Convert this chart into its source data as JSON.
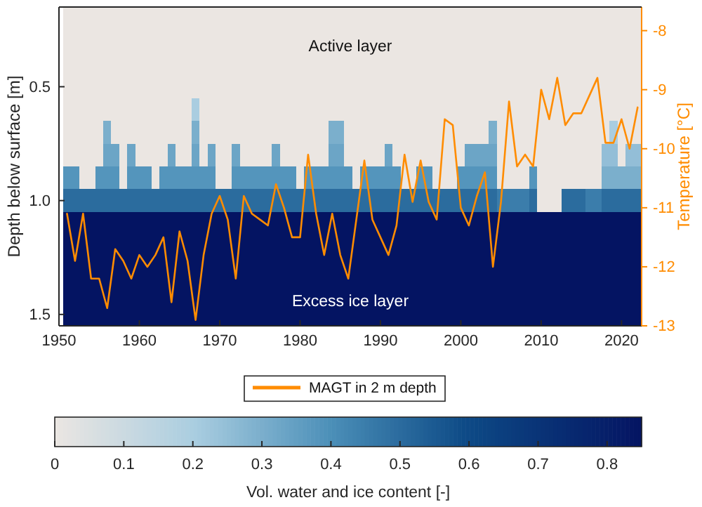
{
  "chart_data": {
    "type": "heatmap",
    "ylabel": "Depth below surface [m]",
    "y2label": "Temperature [°C]",
    "clabel": "Vol. water and ice content [-]",
    "x": [
      1951,
      1952,
      1953,
      1954,
      1955,
      1956,
      1957,
      1958,
      1959,
      1960,
      1961,
      1962,
      1963,
      1964,
      1965,
      1966,
      1967,
      1968,
      1969,
      1970,
      1971,
      1972,
      1973,
      1974,
      1975,
      1976,
      1977,
      1978,
      1979,
      1980,
      1981,
      1982,
      1983,
      1984,
      1985,
      1986,
      1987,
      1988,
      1989,
      1990,
      1991,
      1992,
      1993,
      1994,
      1995,
      1996,
      1997,
      1998,
      1999,
      2000,
      2001,
      2002,
      2003,
      2004,
      2005,
      2006,
      2007,
      2008,
      2009,
      2010,
      2011,
      2012,
      2013,
      2014,
      2015,
      2016,
      2017,
      2018,
      2019,
      2020,
      2021,
      2022
    ],
    "y_categories": [
      null,
      null,
      null,
      "0.5",
      null,
      null,
      null,
      null,
      "1.0",
      null,
      null,
      null,
      null,
      "1.5"
    ],
    "cells": [
      [
        0,
        0,
        0,
        0,
        0,
        0,
        0,
        0,
        0,
        0,
        0,
        0,
        0,
        0,
        0,
        0,
        0,
        0,
        0,
        0,
        0,
        0,
        0,
        0,
        0,
        0,
        0,
        0,
        0,
        0,
        0,
        0,
        0,
        0,
        0,
        0,
        0,
        0,
        0,
        0,
        0,
        0,
        0,
        0,
        0,
        0,
        0,
        0,
        0,
        0,
        0,
        0,
        0,
        0,
        0,
        0,
        0,
        0,
        0,
        0,
        0,
        0,
        0,
        0,
        0,
        0,
        0,
        0,
        0,
        0,
        0,
        0
      ],
      [
        0,
        0,
        0,
        0,
        0,
        0,
        0,
        0,
        0,
        0,
        0,
        0,
        0,
        0,
        0,
        0,
        0,
        0,
        0,
        0,
        0,
        0,
        0,
        0,
        0,
        0,
        0,
        0,
        0,
        0,
        0,
        0,
        0,
        0,
        0,
        0,
        0,
        0,
        0,
        0,
        0,
        0,
        0,
        0,
        0,
        0,
        0,
        0,
        0,
        0,
        0,
        0,
        0,
        0,
        0,
        0,
        0,
        0,
        0,
        0,
        0,
        0,
        0,
        0,
        0,
        0,
        0,
        0,
        0,
        0,
        0,
        0
      ],
      [
        0,
        0,
        0,
        0,
        0,
        0,
        0,
        0,
        0,
        0,
        0,
        0,
        0,
        0,
        0,
        0,
        0,
        0,
        0,
        0,
        0,
        0,
        0,
        0,
        0,
        0,
        0,
        0,
        0,
        0,
        0,
        0,
        0,
        0,
        0,
        0,
        0,
        0,
        0,
        0,
        0,
        0,
        0,
        0,
        0,
        0,
        0,
        0,
        0,
        0,
        0,
        0,
        0,
        0,
        0,
        0,
        0,
        0,
        0,
        0,
        0,
        0,
        0,
        0,
        0,
        0,
        0,
        0,
        0,
        0,
        0,
        0
      ],
      [
        0,
        0,
        0,
        0,
        0,
        0,
        0,
        0,
        0,
        0,
        0,
        0,
        0,
        0,
        0,
        0,
        0,
        0,
        0,
        0,
        0,
        0,
        0,
        0,
        0,
        0,
        0,
        0,
        0,
        0,
        0,
        0,
        0,
        0,
        0,
        0,
        0,
        0,
        0,
        0,
        0,
        0,
        0,
        0,
        0,
        0,
        0,
        0,
        0,
        0,
        0,
        0,
        0,
        0,
        0,
        0,
        0,
        0,
        0,
        0,
        0,
        0,
        0,
        0,
        0,
        0,
        0,
        0,
        0,
        0,
        0,
        0
      ],
      [
        0,
        0,
        0,
        0,
        0,
        0,
        0,
        0,
        0,
        0,
        0,
        0,
        0,
        0,
        0,
        0,
        0.2,
        0,
        0,
        0,
        0,
        0,
        0,
        0,
        0,
        0,
        0,
        0,
        0,
        0,
        0,
        0,
        0,
        0,
        0,
        0,
        0,
        0,
        0,
        0,
        0,
        0,
        0,
        0,
        0,
        0,
        0,
        0,
        0,
        0,
        0,
        0,
        0,
        0,
        0,
        0,
        0,
        0,
        0,
        0,
        0,
        0,
        0,
        0,
        0,
        0,
        0,
        0,
        0,
        0,
        0,
        0
      ],
      [
        0,
        0,
        0,
        0,
        0,
        0.3,
        0,
        0,
        0,
        0,
        0,
        0,
        0,
        0,
        0,
        0,
        0.3,
        0,
        0,
        0,
        0,
        0,
        0,
        0,
        0,
        0,
        0,
        0,
        0,
        0,
        0,
        0,
        0,
        0.3,
        0.3,
        0,
        0,
        0,
        0,
        0,
        0,
        0,
        0,
        0,
        0,
        0,
        0,
        0,
        0,
        0,
        0,
        0,
        0,
        0.3,
        0,
        0,
        0,
        0,
        0,
        0,
        0,
        0,
        0,
        0,
        0,
        0,
        0,
        0,
        0.2,
        0,
        0,
        0
      ],
      [
        0,
        0,
        0,
        0,
        0,
        0.33,
        0.33,
        0,
        0.33,
        0,
        0,
        0,
        0,
        0.33,
        0,
        0,
        0.33,
        0,
        0.33,
        0,
        0,
        0.33,
        0,
        0,
        0,
        0,
        0.33,
        0,
        0,
        0,
        0,
        0,
        0,
        0.33,
        0.33,
        0,
        0,
        0,
        0,
        0,
        0.33,
        0,
        0,
        0,
        0,
        0,
        0,
        0,
        0,
        0,
        0.33,
        0.33,
        0.33,
        0.33,
        0,
        0,
        0,
        0,
        0,
        0,
        0,
        0,
        0,
        0,
        0,
        0,
        0,
        0.25,
        0.25,
        0,
        0.25,
        0.25
      ],
      [
        0.38,
        0.38,
        0,
        0,
        0.38,
        0.38,
        0.38,
        0,
        0.38,
        0.38,
        0.38,
        0,
        0.38,
        0.38,
        0.38,
        0.38,
        0.38,
        0.38,
        0.38,
        0,
        0,
        0.38,
        0.38,
        0.38,
        0.38,
        0.38,
        0.38,
        0.38,
        0.38,
        0,
        0.38,
        0.38,
        0.38,
        0.38,
        0.38,
        0.38,
        0,
        0.38,
        0.38,
        0.38,
        0.38,
        0.38,
        0,
        0,
        0.38,
        0.38,
        0,
        0,
        0,
        0.38,
        0.38,
        0.38,
        0.38,
        0.38,
        0,
        0,
        0,
        0,
        0.38,
        0,
        0,
        0,
        0,
        0,
        0,
        0,
        0,
        0.3,
        0.3,
        0.3,
        0.3,
        0.3
      ],
      [
        0.5,
        0.5,
        0.5,
        0.5,
        0.5,
        0.5,
        0.5,
        0.5,
        0.5,
        0.5,
        0.5,
        0.5,
        0.5,
        0.5,
        0.5,
        0.5,
        0.5,
        0.5,
        0.5,
        0.5,
        0.5,
        0.5,
        0.5,
        0.5,
        0.5,
        0.5,
        0.5,
        0.5,
        0.5,
        0.5,
        0.5,
        0.5,
        0.5,
        0.5,
        0.5,
        0.5,
        0.5,
        0.5,
        0.5,
        0.5,
        0.5,
        0.5,
        0.5,
        0.5,
        0.5,
        0.5,
        0.5,
        0.5,
        0.5,
        0.5,
        0.5,
        0.5,
        0.5,
        0.5,
        0.45,
        0.45,
        0.45,
        0.45,
        0.5,
        0,
        0,
        0,
        0.5,
        0.5,
        0.5,
        0.45,
        0.45,
        0.5,
        0.5,
        0.5,
        0.5,
        0.5
      ],
      [
        0.85,
        0.85,
        0.85,
        0.85,
        0.85,
        0.85,
        0.85,
        0.85,
        0.85,
        0.85,
        0.85,
        0.85,
        0.85,
        0.85,
        0.85,
        0.85,
        0.85,
        0.85,
        0.85,
        0.85,
        0.85,
        0.85,
        0.85,
        0.85,
        0.85,
        0.85,
        0.85,
        0.85,
        0.85,
        0.85,
        0.85,
        0.85,
        0.85,
        0.85,
        0.85,
        0.85,
        0.85,
        0.85,
        0.85,
        0.85,
        0.85,
        0.85,
        0.85,
        0.85,
        0.85,
        0.85,
        0.85,
        0.85,
        0.85,
        0.85,
        0.85,
        0.85,
        0.85,
        0.85,
        0.85,
        0.85,
        0.85,
        0.85,
        0.85,
        0.85,
        0.85,
        0.85,
        0.85,
        0.85,
        0.85,
        0.85,
        0.85,
        0.85,
        0.85,
        0.85,
        0.85,
        0.85
      ],
      [
        0.85,
        0.85,
        0.85,
        0.85,
        0.85,
        0.85,
        0.85,
        0.85,
        0.85,
        0.85,
        0.85,
        0.85,
        0.85,
        0.85,
        0.85,
        0.85,
        0.85,
        0.85,
        0.85,
        0.85,
        0.85,
        0.85,
        0.85,
        0.85,
        0.85,
        0.85,
        0.85,
        0.85,
        0.85,
        0.85,
        0.85,
        0.85,
        0.85,
        0.85,
        0.85,
        0.85,
        0.85,
        0.85,
        0.85,
        0.85,
        0.85,
        0.85,
        0.85,
        0.85,
        0.85,
        0.85,
        0.85,
        0.85,
        0.85,
        0.85,
        0.85,
        0.85,
        0.85,
        0.85,
        0.85,
        0.85,
        0.85,
        0.85,
        0.85,
        0.85,
        0.85,
        0.85,
        0.85,
        0.85,
        0.85,
        0.85,
        0.85,
        0.85,
        0.85,
        0.85,
        0.85,
        0.85
      ],
      [
        0.85,
        0.85,
        0.85,
        0.85,
        0.85,
        0.85,
        0.85,
        0.85,
        0.85,
        0.85,
        0.85,
        0.85,
        0.85,
        0.85,
        0.85,
        0.85,
        0.85,
        0.85,
        0.85,
        0.85,
        0.85,
        0.85,
        0.85,
        0.85,
        0.85,
        0.85,
        0.85,
        0.85,
        0.85,
        0.85,
        0.85,
        0.85,
        0.85,
        0.85,
        0.85,
        0.85,
        0.85,
        0.85,
        0.85,
        0.85,
        0.85,
        0.85,
        0.85,
        0.85,
        0.85,
        0.85,
        0.85,
        0.85,
        0.85,
        0.85,
        0.85,
        0.85,
        0.85,
        0.85,
        0.85,
        0.85,
        0.85,
        0.85,
        0.85,
        0.85,
        0.85,
        0.85,
        0.85,
        0.85,
        0.85,
        0.85,
        0.85,
        0.85,
        0.85,
        0.85,
        0.85,
        0.85
      ],
      [
        0.85,
        0.85,
        0.85,
        0.85,
        0.85,
        0.85,
        0.85,
        0.85,
        0.85,
        0.85,
        0.85,
        0.85,
        0.85,
        0.85,
        0.85,
        0.85,
        0.85,
        0.85,
        0.85,
        0.85,
        0.85,
        0.85,
        0.85,
        0.85,
        0.85,
        0.85,
        0.85,
        0.85,
        0.85,
        0.85,
        0.85,
        0.85,
        0.85,
        0.85,
        0.85,
        0.85,
        0.85,
        0.85,
        0.85,
        0.85,
        0.85,
        0.85,
        0.85,
        0.85,
        0.85,
        0.85,
        0.85,
        0.85,
        0.85,
        0.85,
        0.85,
        0.85,
        0.85,
        0.85,
        0.85,
        0.85,
        0.85,
        0.85,
        0.85,
        0.85,
        0.85,
        0.85,
        0.85,
        0.85,
        0.85,
        0.85,
        0.85,
        0.85,
        0.85,
        0.85,
        0.85,
        0.85
      ],
      [
        0.85,
        0.85,
        0.85,
        0.85,
        0.85,
        0.85,
        0.85,
        0.85,
        0.85,
        0.85,
        0.85,
        0.85,
        0.85,
        0.85,
        0.85,
        0.85,
        0.85,
        0.85,
        0.85,
        0.85,
        0.85,
        0.85,
        0.85,
        0.85,
        0.85,
        0.85,
        0.85,
        0.85,
        0.85,
        0.85,
        0.85,
        0.85,
        0.85,
        0.85,
        0.85,
        0.85,
        0.85,
        0.85,
        0.85,
        0.85,
        0.85,
        0.85,
        0.85,
        0.85,
        0.85,
        0.85,
        0.85,
        0.85,
        0.85,
        0.85,
        0.85,
        0.85,
        0.85,
        0.85,
        0.85,
        0.85,
        0.85,
        0.85,
        0.85,
        0.85,
        0.85,
        0.85,
        0.85,
        0.85,
        0.85,
        0.85,
        0.85,
        0.85,
        0.85,
        0.85,
        0.85,
        0.85
      ]
    ],
    "clim": [
      0,
      0.85
    ],
    "cticks": [
      0,
      0.1,
      0.2,
      0.3,
      0.4,
      0.5,
      0.6,
      0.7,
      0.8
    ],
    "series": [
      {
        "name": "MAGT in 2 m depth",
        "type": "line",
        "axis": "y2",
        "color": "#ff8c00",
        "values": [
          -11.1,
          -11.9,
          -11.1,
          -12.2,
          -12.2,
          -12.7,
          -11.7,
          -11.9,
          -12.2,
          -11.8,
          -12.0,
          -11.8,
          -11.5,
          -12.6,
          -11.4,
          -11.9,
          -12.9,
          -11.8,
          -11.1,
          -10.8,
          -11.2,
          -12.2,
          -10.8,
          -11.1,
          -11.2,
          -11.3,
          -10.6,
          -11.0,
          -11.5,
          -11.5,
          -10.1,
          -11.1,
          -11.8,
          -11.1,
          -11.8,
          -12.2,
          -11.2,
          -10.2,
          -11.2,
          -11.5,
          -11.8,
          -11.3,
          -10.1,
          -10.9,
          -10.2,
          -10.9,
          -11.2,
          -9.5,
          -9.6,
          -11.0,
          -11.3,
          -10.8,
          -10.4,
          -12.0,
          -10.9,
          -9.2,
          -10.3,
          -10.1,
          -10.3,
          -9.0,
          -9.5,
          -8.8,
          -9.6,
          -9.4,
          -9.4,
          -9.1,
          -8.8,
          -9.9,
          -9.9,
          -9.5,
          -10.0,
          -9.3
        ]
      }
    ],
    "xlim": [
      1950,
      2022.5
    ],
    "xticks": [
      1950,
      1960,
      1970,
      1980,
      1990,
      2000,
      2010,
      2020
    ],
    "y2lim": [
      -13,
      -7.6
    ],
    "y2ticks": [
      -13,
      -12,
      -11,
      -10,
      -9,
      -8
    ],
    "annotations": [
      "Active layer",
      "Excess ice layer"
    ],
    "legend": "bottom"
  }
}
